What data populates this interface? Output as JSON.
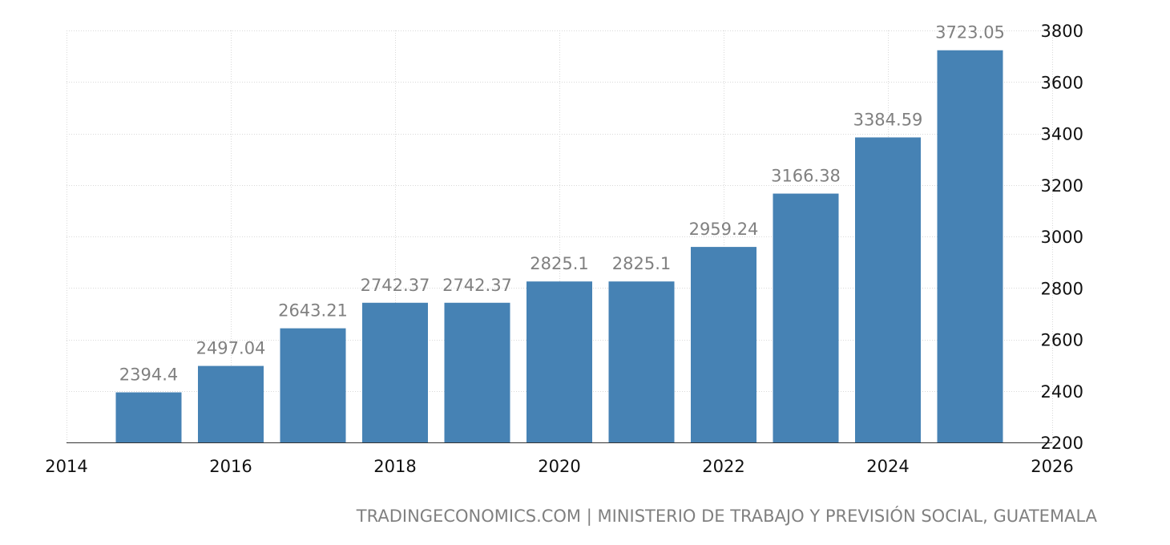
{
  "chart_data": {
    "type": "bar",
    "categories": [
      "2015",
      "2016",
      "2017",
      "2018",
      "2019",
      "2020",
      "2021",
      "2022",
      "2023",
      "2024",
      "2025"
    ],
    "x": [
      2015,
      2016,
      2017,
      2018,
      2019,
      2020,
      2021,
      2022,
      2023,
      2024,
      2025
    ],
    "values": [
      2394.4,
      2497.04,
      2643.21,
      2742.37,
      2742.37,
      2825.1,
      2825.1,
      2959.24,
      3166.38,
      3384.59,
      3723.05
    ],
    "data_labels": [
      "2394.4",
      "2497.04",
      "2643.21",
      "2742.37",
      "2742.37",
      "2825.1",
      "2825.1",
      "2959.24",
      "3166.38",
      "3384.59",
      "3723.05"
    ],
    "xlim": [
      2014,
      2026
    ],
    "ylim": [
      2200,
      3800
    ],
    "x_ticks": [
      "2014",
      "2016",
      "2018",
      "2020",
      "2022",
      "2024",
      "2026"
    ],
    "y_ticks": [
      "2200",
      "2400",
      "2600",
      "2800",
      "3000",
      "3200",
      "3400",
      "3600",
      "3800"
    ],
    "y_axis_side": "right",
    "grid": true,
    "bar_color": "#4682b4",
    "title": "",
    "xlabel": "",
    "ylabel": ""
  },
  "source": "TRADINGECONOMICS.COM | MINISTERIO DE TRABAJO Y PREVISIÓN SOCIAL, GUATEMALA"
}
